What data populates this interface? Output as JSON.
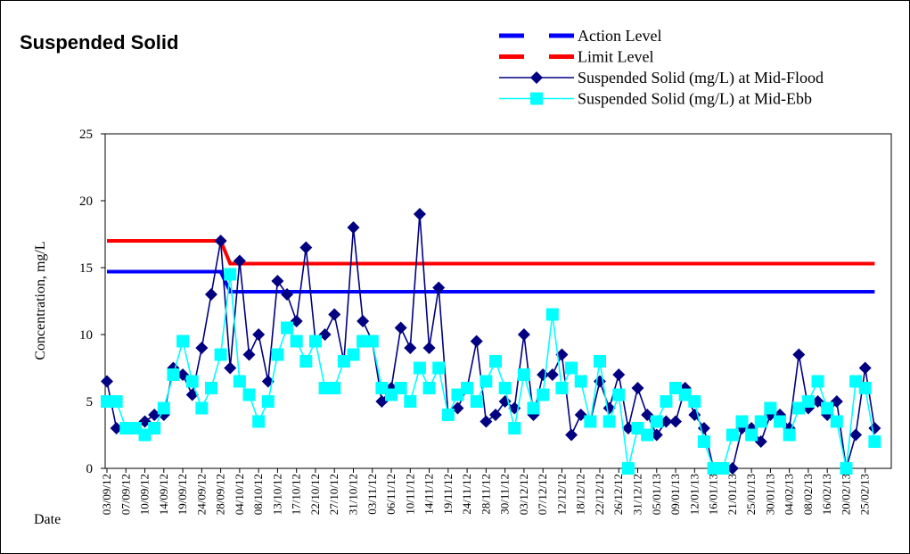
{
  "chart_data": {
    "type": "line",
    "title": "Suspended Solid",
    "y_label": "Concentration, mg/L",
    "x_label": "Date",
    "legend": "top-right",
    "categories": [
      "03/09/12",
      null,
      "07/09/12",
      null,
      "10/09/12",
      null,
      "14/09/12",
      null,
      "19/09/12",
      null,
      "24/09/12",
      null,
      "28/09/12",
      null,
      "04/10/12",
      null,
      "08/10/12",
      null,
      "13/10/12",
      null,
      "17/10/12",
      null,
      "22/10/12",
      null,
      "27/10/12",
      null,
      "31/10/12",
      null,
      "03/11/12",
      null,
      "06/11/12",
      null,
      "10/11/12",
      null,
      "14/11/12",
      null,
      "19/11/12",
      null,
      "24/11/12",
      null,
      "28/11/12",
      null,
      "30/11/12",
      null,
      "03/12/12",
      null,
      "07/12/12",
      null,
      "12/12/12",
      null,
      "18/12/12",
      null,
      "22/12/12",
      null,
      "26/12/12",
      null,
      "31/12/12",
      null,
      "05/01/13",
      null,
      "09/01/13",
      null,
      "12/01/13",
      null,
      "16/01/13",
      null,
      "21/01/13",
      null,
      "25/01/13",
      null,
      "30/01/13",
      null,
      "04/02/13",
      null,
      "08/02/13",
      null,
      "16/02/13",
      null,
      "20/02/13",
      null,
      "25/02/13",
      null
    ],
    "series": [
      {
        "name": "Action Level",
        "color": "#0000FF",
        "marker": "none",
        "values": [
          14.7,
          14.7,
          14.7,
          14.7,
          14.7,
          14.7,
          14.7,
          14.7,
          14.7,
          14.7,
          14.7,
          14.7,
          14.7,
          13.2,
          13.2,
          13.2,
          13.2,
          13.2,
          13.2,
          13.2,
          13.2,
          13.2,
          13.2,
          13.2,
          13.2,
          13.2,
          13.2,
          13.2,
          13.2,
          13.2,
          13.2,
          13.2,
          13.2,
          13.2,
          13.2,
          13.2,
          13.2,
          13.2,
          13.2,
          13.2,
          13.2,
          13.2,
          13.2,
          13.2,
          13.2,
          13.2,
          13.2,
          13.2,
          13.2,
          13.2,
          13.2,
          13.2,
          13.2,
          13.2,
          13.2,
          13.2,
          13.2,
          13.2,
          13.2,
          13.2,
          13.2,
          13.2,
          13.2,
          13.2,
          13.2,
          13.2,
          13.2,
          13.2,
          13.2,
          13.2,
          13.2,
          13.2,
          13.2,
          13.2,
          13.2,
          13.2,
          13.2,
          13.2,
          13.2,
          13.2,
          13.2,
          13.2
        ]
      },
      {
        "name": "Limit Level",
        "color": "#FF0000",
        "marker": "none",
        "values": [
          17,
          17,
          17,
          17,
          17,
          17,
          17,
          17,
          17,
          17,
          17,
          17,
          17,
          15.3,
          15.3,
          15.3,
          15.3,
          15.3,
          15.3,
          15.3,
          15.3,
          15.3,
          15.3,
          15.3,
          15.3,
          15.3,
          15.3,
          15.3,
          15.3,
          15.3,
          15.3,
          15.3,
          15.3,
          15.3,
          15.3,
          15.3,
          15.3,
          15.3,
          15.3,
          15.3,
          15.3,
          15.3,
          15.3,
          15.3,
          15.3,
          15.3,
          15.3,
          15.3,
          15.3,
          15.3,
          15.3,
          15.3,
          15.3,
          15.3,
          15.3,
          15.3,
          15.3,
          15.3,
          15.3,
          15.3,
          15.3,
          15.3,
          15.3,
          15.3,
          15.3,
          15.3,
          15.3,
          15.3,
          15.3,
          15.3,
          15.3,
          15.3,
          15.3,
          15.3,
          15.3,
          15.3,
          15.3,
          15.3,
          15.3,
          15.3,
          15.3,
          15.3
        ]
      },
      {
        "name": "Suspended Solid (mg/L) at Mid-Flood",
        "color": "#000080",
        "marker": "diamond",
        "values": [
          6.5,
          3,
          3,
          3,
          3.5,
          4,
          4,
          7.5,
          7,
          5.5,
          9,
          13,
          17,
          7.5,
          15.5,
          8.5,
          10,
          6.5,
          14,
          13,
          11,
          16.5,
          9.5,
          10,
          11.5,
          8,
          18,
          11,
          9.5,
          5,
          6,
          10.5,
          9,
          19,
          9,
          13.5,
          4,
          4.5,
          6,
          9.5,
          3.5,
          4,
          5,
          4.5,
          10,
          4,
          7,
          7,
          8.5,
          2.5,
          4,
          3.5,
          6.5,
          4.5,
          7,
          3,
          6,
          4,
          2.5,
          3.5,
          3.5,
          6,
          4,
          3,
          0,
          0,
          0,
          3,
          3,
          2,
          4,
          4,
          3,
          8.5,
          4.5,
          5,
          4,
          5,
          0,
          2.5,
          7.5,
          3
        ]
      },
      {
        "name": "Suspended Solid (mg/L) at Mid-Ebb",
        "color": "#00FFFF",
        "marker": "square",
        "values": [
          5,
          5,
          3,
          3,
          2.5,
          3,
          4.5,
          7,
          9.5,
          6.5,
          4.5,
          6,
          8.5,
          14.5,
          6.5,
          5.5,
          3.5,
          5,
          8.5,
          10.5,
          9.5,
          8,
          9.5,
          6,
          6,
          8,
          8.5,
          9.5,
          9.5,
          6,
          5.5,
          6,
          5,
          7.5,
          6,
          7.5,
          4,
          5.5,
          6,
          5,
          6.5,
          8,
          6,
          3,
          7,
          4.5,
          5.5,
          11.5,
          6,
          7.5,
          6.5,
          3.5,
          8,
          3.5,
          5.5,
          0,
          3,
          2.5,
          3.5,
          5,
          6,
          5.5,
          5,
          2,
          0,
          0,
          2.5,
          3.5,
          2.5,
          3.5,
          4.5,
          3.5,
          2.5,
          4.5,
          5,
          6.5,
          4.5,
          3.5,
          0,
          6.5,
          6,
          2
        ]
      }
    ],
    "ylim": [
      0,
      25
    ],
    "yticks": [
      0,
      5,
      10,
      15,
      20,
      25
    ]
  }
}
